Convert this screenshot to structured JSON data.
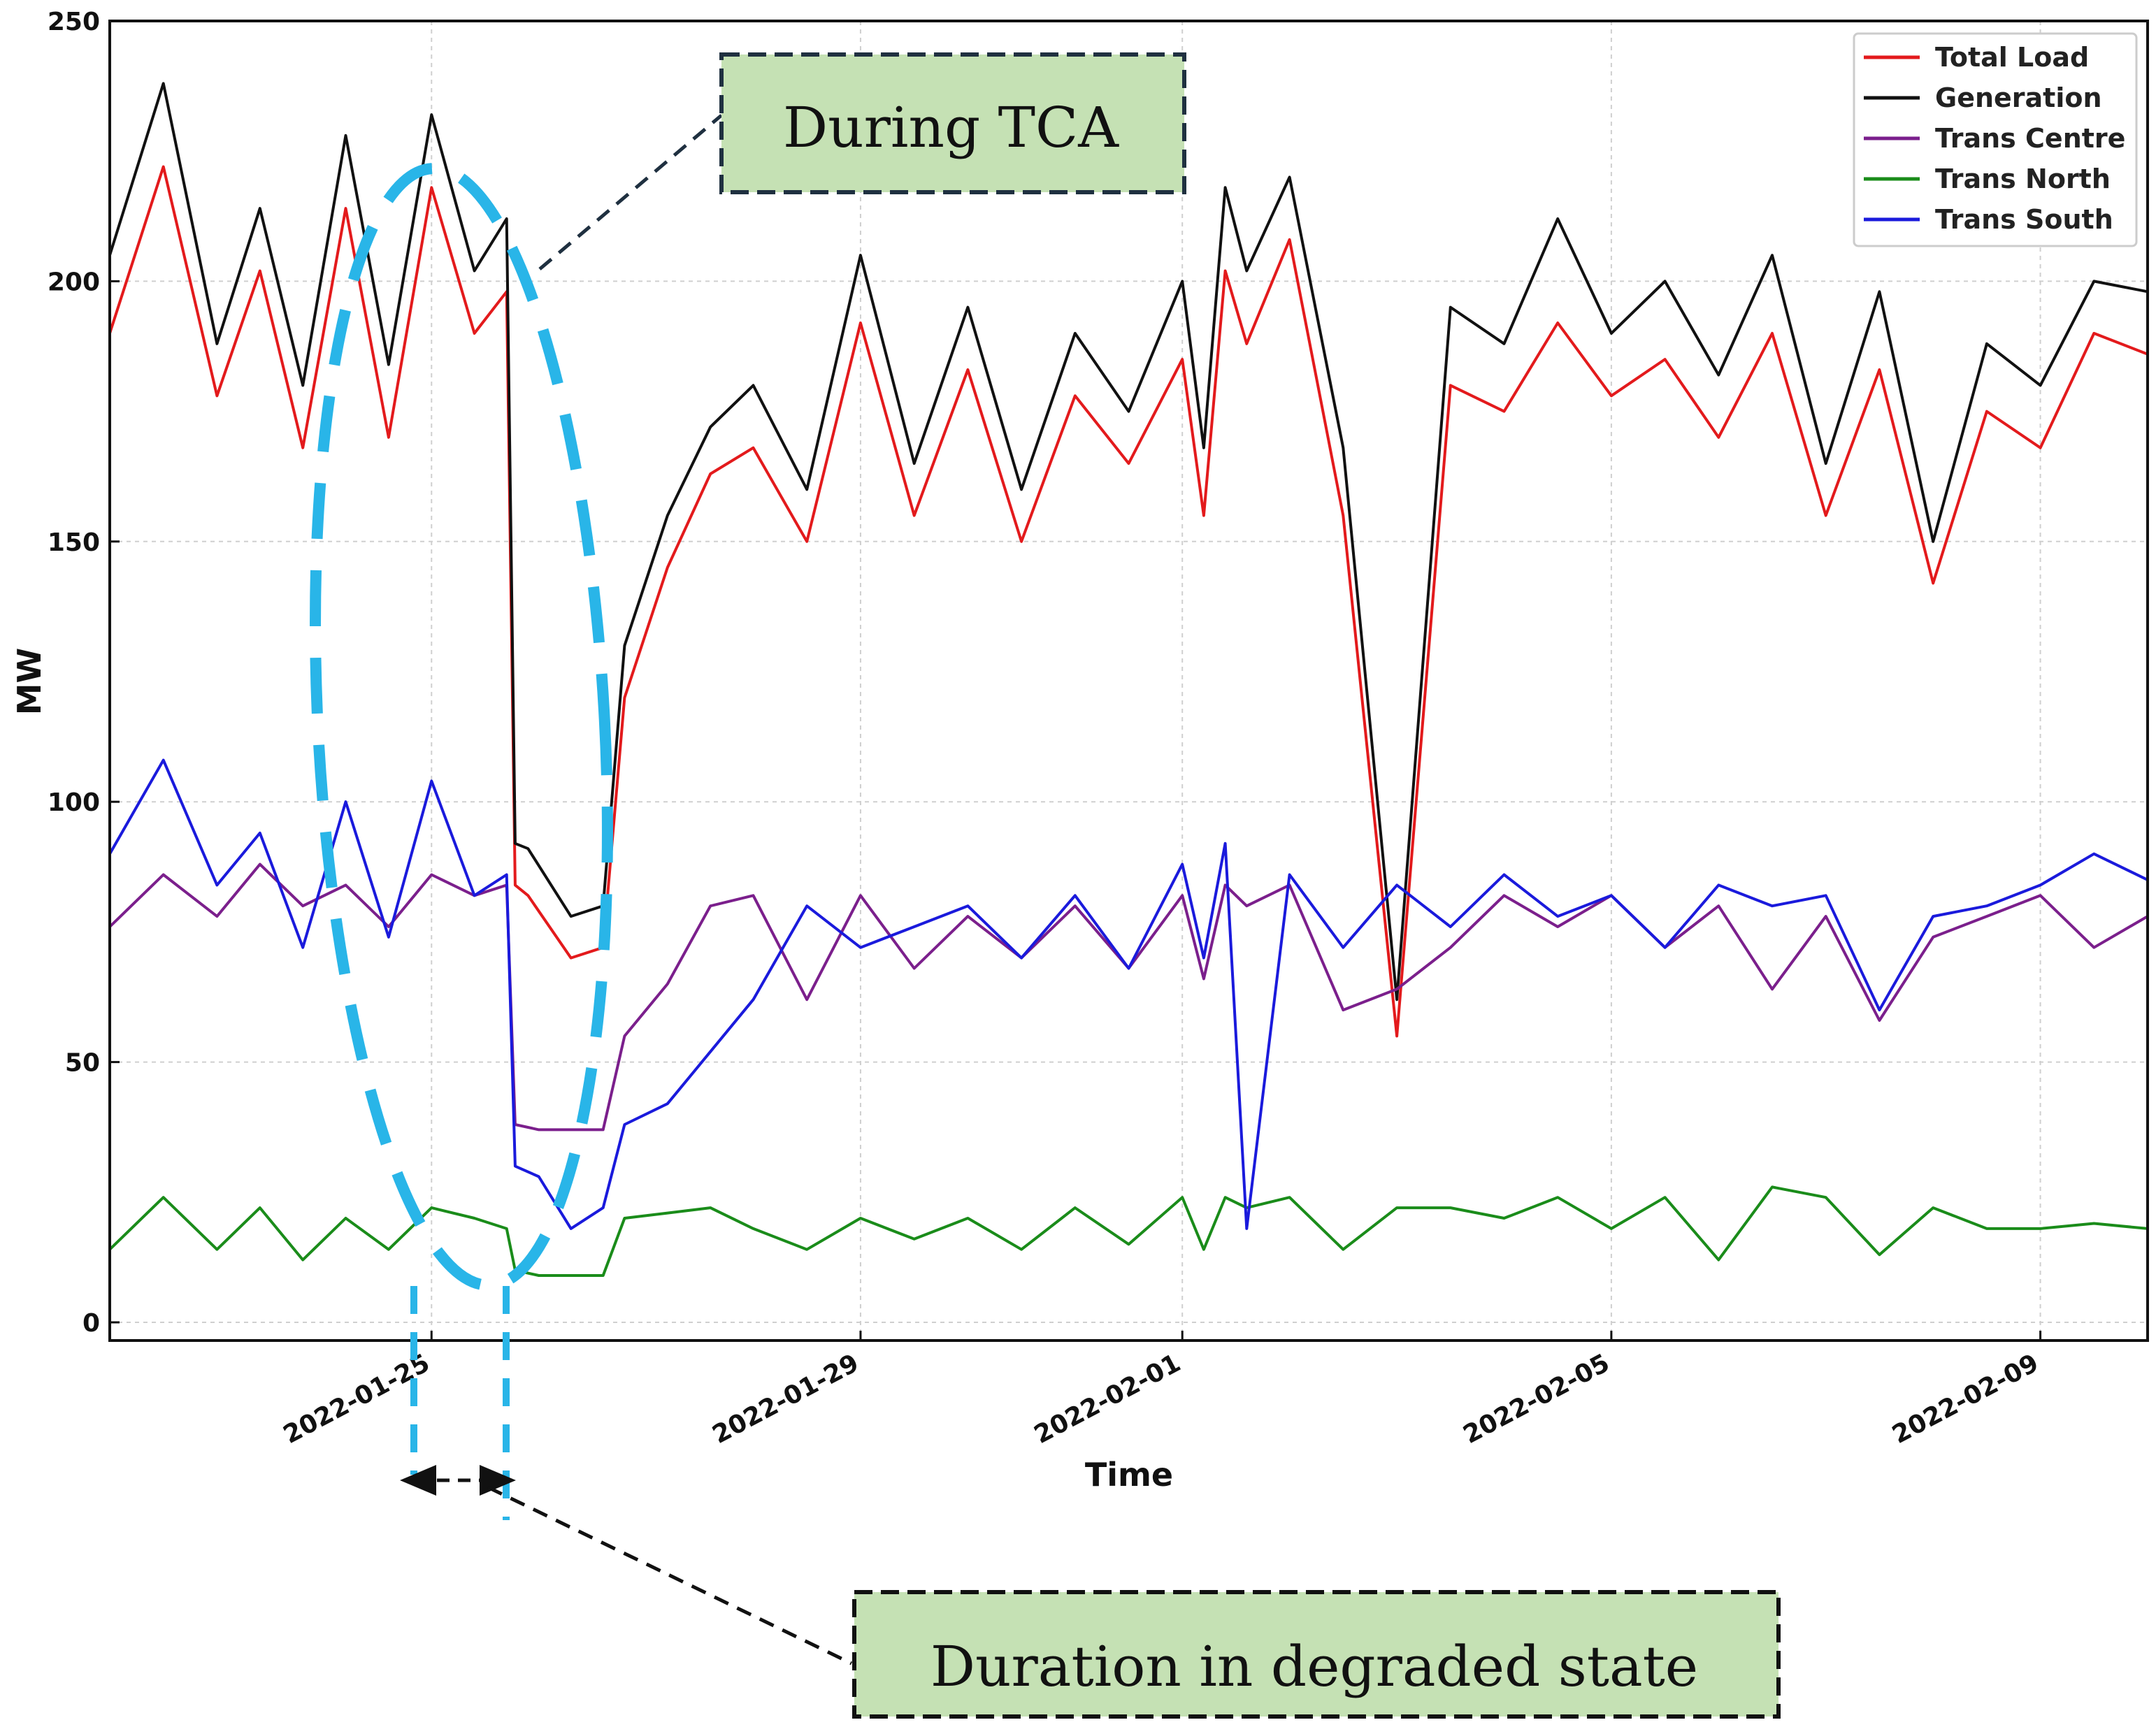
{
  "chart_data": {
    "type": "line",
    "title": "",
    "xlabel": "Time",
    "ylabel": "MW",
    "ylim": [
      0,
      250
    ],
    "xlim": [
      "2022-01-22",
      "2022-02-10"
    ],
    "yticks": [
      0,
      50,
      100,
      150,
      200,
      250
    ],
    "xticks": [
      {
        "date": "2022-01-25",
        "label": "2022-01-25"
      },
      {
        "date": "2022-01-29",
        "label": "2022-01-29"
      },
      {
        "date": "2022-02-01",
        "label": "2022-02-01"
      },
      {
        "date": "2022-02-05",
        "label": "2022-02-05"
      },
      {
        "date": "2022-02-09",
        "label": "2022-02-09"
      }
    ],
    "grid": true,
    "legend_position": "top-right",
    "series": [
      {
        "name": "Total Load",
        "color": "#e31a1c",
        "x": [
          0,
          0.5,
          1,
          1.4,
          1.8,
          2.2,
          2.6,
          3.0,
          3.4,
          3.7,
          3.78,
          3.9,
          4.3,
          4.6,
          4.8,
          5.2,
          5.6,
          6.0,
          6.5,
          7.0,
          7.5,
          8.0,
          8.5,
          9.0,
          9.5,
          10.0,
          10.2,
          10.4,
          10.6,
          11.0,
          11.5,
          12.0,
          12.5,
          13.0,
          13.5,
          14.0,
          14.5,
          15.0,
          15.5,
          16.0,
          16.5,
          17.0,
          17.5,
          18.0,
          18.5,
          19.0
        ],
        "values": [
          190,
          222,
          178,
          202,
          168,
          214,
          170,
          218,
          190,
          198,
          84,
          82,
          70,
          72,
          120,
          145,
          163,
          168,
          150,
          192,
          155,
          183,
          150,
          178,
          165,
          185,
          155,
          202,
          188,
          208,
          155,
          55,
          180,
          175,
          192,
          178,
          185,
          170,
          190,
          155,
          183,
          142,
          175,
          168,
          190,
          186
        ]
      },
      {
        "name": "Generation",
        "color": "#111111",
        "x": [
          0,
          0.5,
          1,
          1.4,
          1.8,
          2.2,
          2.6,
          3.0,
          3.4,
          3.7,
          3.78,
          3.9,
          4.3,
          4.6,
          4.8,
          5.2,
          5.6,
          6.0,
          6.5,
          7.0,
          7.5,
          8.0,
          8.5,
          9.0,
          9.5,
          10.0,
          10.2,
          10.4,
          10.6,
          11.0,
          11.5,
          12.0,
          12.5,
          13.0,
          13.5,
          14.0,
          14.5,
          15.0,
          15.5,
          16.0,
          16.5,
          17.0,
          17.5,
          18.0,
          18.5,
          19.0
        ],
        "values": [
          205,
          238,
          188,
          214,
          180,
          228,
          184,
          232,
          202,
          212,
          92,
          91,
          78,
          80,
          130,
          155,
          172,
          180,
          160,
          205,
          165,
          195,
          160,
          190,
          175,
          200,
          168,
          218,
          202,
          220,
          168,
          62,
          195,
          188,
          212,
          190,
          200,
          182,
          205,
          165,
          198,
          150,
          188,
          180,
          200,
          198
        ]
      },
      {
        "name": "Trans Centre",
        "color": "#7b1f8c",
        "x": [
          0,
          0.5,
          1,
          1.4,
          1.8,
          2.2,
          2.6,
          3.0,
          3.4,
          3.7,
          3.78,
          4.0,
          4.3,
          4.6,
          4.8,
          5.2,
          5.6,
          6.0,
          6.5,
          7.0,
          7.5,
          8.0,
          8.5,
          9.0,
          9.5,
          10.0,
          10.2,
          10.4,
          10.6,
          11.0,
          11.5,
          12.0,
          12.5,
          13.0,
          13.5,
          14.0,
          14.5,
          15.0,
          15.5,
          16.0,
          16.5,
          17.0,
          17.5,
          18.0,
          18.5,
          19.0
        ],
        "values": [
          76,
          86,
          78,
          88,
          80,
          84,
          76,
          86,
          82,
          84,
          38,
          37,
          37,
          37,
          55,
          65,
          80,
          82,
          62,
          82,
          68,
          78,
          70,
          80,
          68,
          82,
          66,
          84,
          80,
          84,
          60,
          64,
          72,
          82,
          76,
          82,
          72,
          80,
          64,
          78,
          58,
          74,
          78,
          82,
          72,
          78
        ]
      },
      {
        "name": "Trans North",
        "color": "#1a8c1a",
        "x": [
          0,
          0.5,
          1,
          1.4,
          1.8,
          2.2,
          2.6,
          3.0,
          3.4,
          3.7,
          3.78,
          4.0,
          4.3,
          4.6,
          4.8,
          5.2,
          5.6,
          6.0,
          6.5,
          7.0,
          7.5,
          8.0,
          8.5,
          9.0,
          9.5,
          10.0,
          10.2,
          10.4,
          10.6,
          11.0,
          11.5,
          12.0,
          12.5,
          13.0,
          13.5,
          14.0,
          14.5,
          15.0,
          15.5,
          16.0,
          16.5,
          17.0,
          17.5,
          18.0,
          18.5,
          19.0
        ],
        "values": [
          14,
          24,
          14,
          22,
          12,
          20,
          14,
          22,
          20,
          18,
          10,
          9,
          9,
          9,
          20,
          21,
          22,
          18,
          14,
          20,
          16,
          20,
          14,
          22,
          15,
          24,
          14,
          24,
          22,
          24,
          14,
          22,
          22,
          20,
          24,
          18,
          24,
          12,
          26,
          24,
          13,
          22,
          18,
          18,
          19,
          18
        ]
      },
      {
        "name": "Trans South",
        "color": "#1a1adc",
        "x": [
          0,
          0.5,
          1,
          1.4,
          1.8,
          2.2,
          2.6,
          3.0,
          3.4,
          3.7,
          3.78,
          4.0,
          4.3,
          4.6,
          4.8,
          5.2,
          5.6,
          6.0,
          6.5,
          7.0,
          7.5,
          8.0,
          8.5,
          9.0,
          9.5,
          10.0,
          10.2,
          10.4,
          10.6,
          11.0,
          11.5,
          12.0,
          12.5,
          13.0,
          13.5,
          14.0,
          14.5,
          15.0,
          15.5,
          16.0,
          16.5,
          17.0,
          17.5,
          18.0,
          18.5,
          19.0
        ],
        "values": [
          90,
          108,
          84,
          94,
          72,
          100,
          74,
          104,
          82,
          86,
          30,
          28,
          18,
          22,
          38,
          42,
          52,
          62,
          80,
          72,
          76,
          80,
          70,
          82,
          68,
          88,
          70,
          92,
          18,
          86,
          72,
          84,
          76,
          86,
          78,
          82,
          72,
          84,
          80,
          82,
          60,
          78,
          80,
          84,
          90,
          85
        ]
      }
    ]
  },
  "annotations": {
    "tca_label": "During TCA",
    "degraded_label": "Duration in degraded state"
  },
  "colors": {
    "callout_fill": "#c5e1b4",
    "callout_border": "#1f3040",
    "highlight": "#29b5e8"
  }
}
